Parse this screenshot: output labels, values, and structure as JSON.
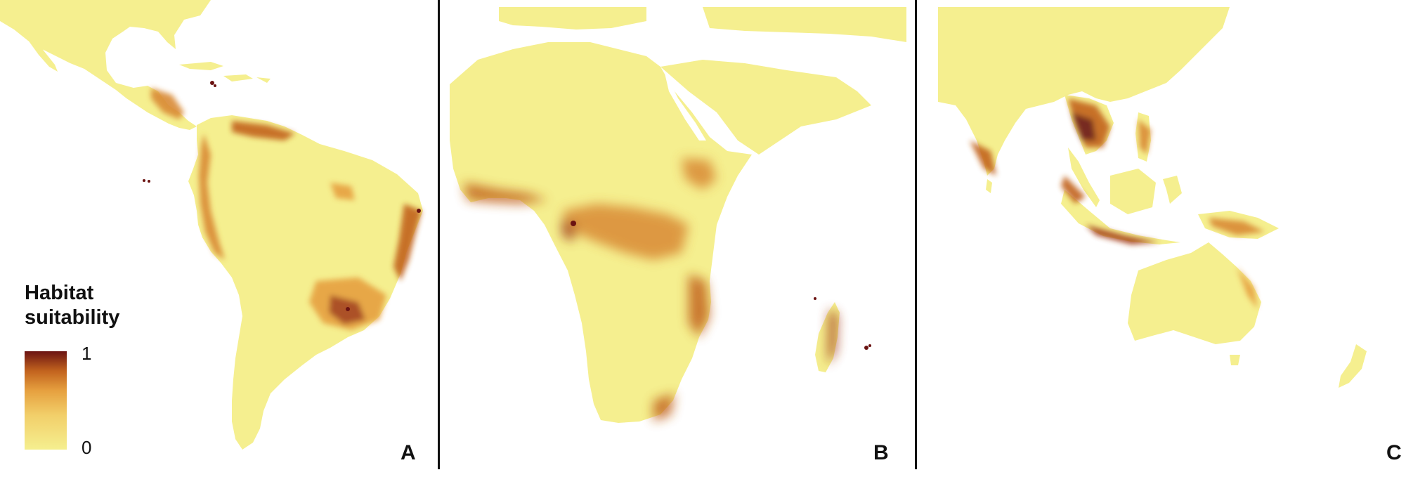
{
  "legend": {
    "title_line1": "Habitat",
    "title_line2": "suitability",
    "max_label": "1",
    "min_label": "0",
    "scale_colors": [
      "#f5ef8f",
      "#f2cf6a",
      "#e6a03f",
      "#c2631e",
      "#6b1312"
    ]
  },
  "panels": [
    {
      "letter": "A",
      "region": "Americas"
    },
    {
      "letter": "B",
      "region": "Africa"
    },
    {
      "letter": "C",
      "region": "Asia-Pacific and Australia"
    }
  ],
  "colors": {
    "land": "#f5ef8f",
    "low": "#ecc46a",
    "mid": "#d98a36",
    "high": "#a5401b",
    "max": "#6b1312"
  }
}
